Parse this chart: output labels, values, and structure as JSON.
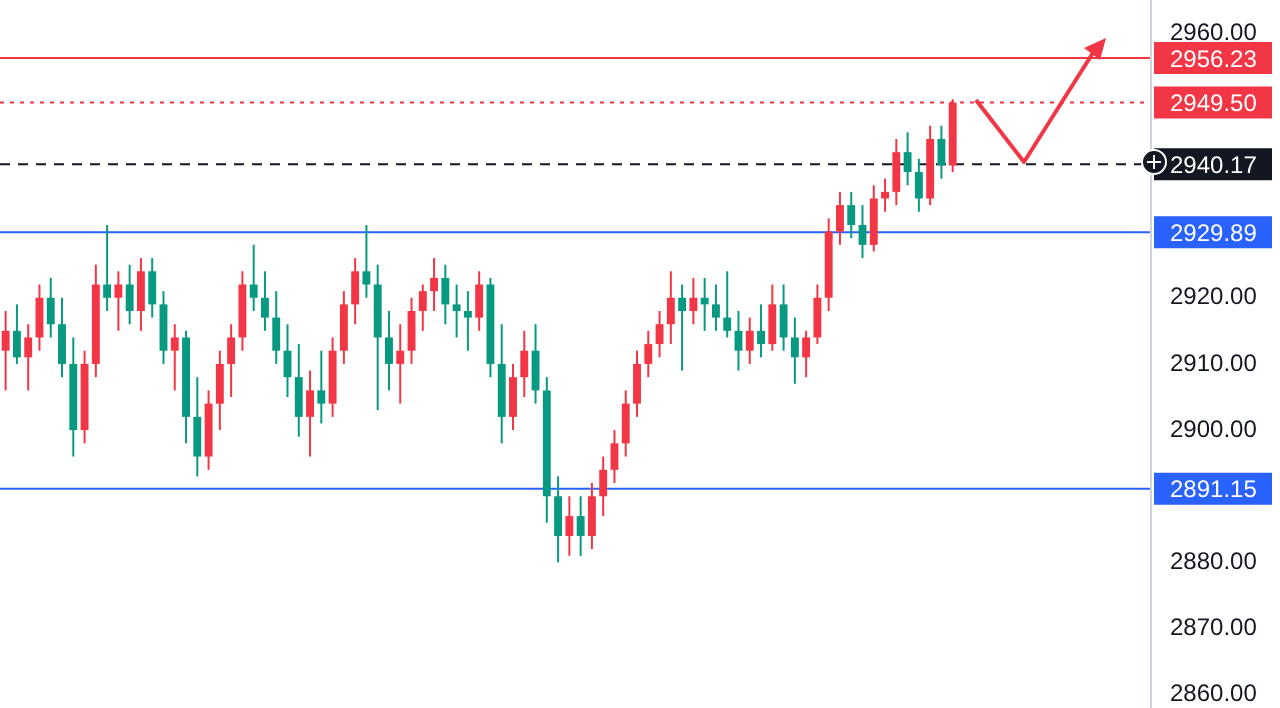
{
  "chart_data": {
    "type": "candlestick",
    "categories": [
      null,
      null,
      null,
      null,
      null,
      null,
      null,
      null,
      null,
      null,
      null,
      null,
      null,
      null,
      null,
      null,
      null,
      null,
      null,
      null,
      null,
      null,
      null,
      null,
      null,
      null,
      null,
      null,
      null,
      null,
      null,
      null,
      null,
      null,
      null,
      null,
      null,
      null,
      null,
      null,
      null,
      null,
      null,
      null,
      null,
      null,
      null,
      null,
      null,
      null,
      null,
      null,
      null,
      null,
      null,
      null,
      null,
      null,
      null,
      null,
      null,
      null,
      null,
      null,
      null,
      null,
      null,
      null,
      null,
      null,
      null,
      null,
      null,
      null,
      null,
      null,
      null,
      null,
      null,
      null,
      null,
      null,
      null,
      null,
      null,
      null,
      null,
      null,
      null,
      null,
      null,
      null,
      null,
      null,
      null,
      null,
      null,
      null,
      null,
      null,
      null,
      null
    ],
    "ohlc": [
      [
        2912,
        2918,
        2906,
        2915
      ],
      [
        2915,
        2919,
        2910,
        2911
      ],
      [
        2911,
        2916,
        2906,
        2914
      ],
      [
        2914,
        2922,
        2912,
        2920
      ],
      [
        2920,
        2923,
        2914,
        2916
      ],
      [
        2916,
        2920,
        2908,
        2910
      ],
      [
        2910,
        2914,
        2896,
        2900
      ],
      [
        2900,
        2912,
        2898,
        2910
      ],
      [
        2910,
        2925,
        2908,
        2922
      ],
      [
        2922,
        2931,
        2918,
        2920
      ],
      [
        2920,
        2924,
        2915,
        2922
      ],
      [
        2922,
        2925,
        2916,
        2918
      ],
      [
        2918,
        2926,
        2915,
        2924
      ],
      [
        2924,
        2926,
        2917,
        2919
      ],
      [
        2919,
        2921,
        2910,
        2912
      ],
      [
        2912,
        2916,
        2906,
        2914
      ],
      [
        2914,
        2915,
        2898,
        2902
      ],
      [
        2902,
        2908,
        2893,
        2896
      ],
      [
        2896,
        2906,
        2894,
        2904
      ],
      [
        2904,
        2912,
        2900,
        2910
      ],
      [
        2910,
        2916,
        2905,
        2914
      ],
      [
        2914,
        2924,
        2912,
        2922
      ],
      [
        2922,
        2928,
        2918,
        2920
      ],
      [
        2920,
        2924,
        2915,
        2917
      ],
      [
        2917,
        2921,
        2910,
        2912
      ],
      [
        2912,
        2916,
        2905,
        2908
      ],
      [
        2908,
        2913,
        2899,
        2902
      ],
      [
        2902,
        2909,
        2896,
        2906
      ],
      [
        2906,
        2912,
        2901,
        2904
      ],
      [
        2904,
        2914,
        2902,
        2912
      ],
      [
        2912,
        2921,
        2910,
        2919
      ],
      [
        2919,
        2926,
        2916,
        2924
      ],
      [
        2924,
        2931,
        2920,
        2922
      ],
      [
        2922,
        2925,
        2903,
        2914
      ],
      [
        2914,
        2918,
        2906,
        2910
      ],
      [
        2910,
        2916,
        2904,
        2912
      ],
      [
        2912,
        2920,
        2910,
        2918
      ],
      [
        2918,
        2922,
        2915,
        2921
      ],
      [
        2921,
        2926,
        2918,
        2923
      ],
      [
        2923,
        2925,
        2916,
        2919
      ],
      [
        2919,
        2922,
        2914,
        2918
      ],
      [
        2918,
        2921,
        2912,
        2917
      ],
      [
        2917,
        2924,
        2915,
        2922
      ],
      [
        2922,
        2923,
        2908,
        2910
      ],
      [
        2910,
        2916,
        2898,
        2902
      ],
      [
        2902,
        2910,
        2900,
        2908
      ],
      [
        2908,
        2915,
        2905,
        2912
      ],
      [
        2912,
        2916,
        2904,
        2906
      ],
      [
        2906,
        2908,
        2886,
        2890
      ],
      [
        2890,
        2893,
        2880,
        2884
      ],
      [
        2884,
        2890,
        2881,
        2887
      ],
      [
        2887,
        2890,
        2881,
        2884
      ],
      [
        2884,
        2892,
        2882,
        2890
      ],
      [
        2890,
        2896,
        2887,
        2894
      ],
      [
        2894,
        2900,
        2892,
        2898
      ],
      [
        2898,
        2906,
        2896,
        2904
      ],
      [
        2904,
        2912,
        2902,
        2910
      ],
      [
        2910,
        2915,
        2908,
        2913
      ],
      [
        2913,
        2918,
        2911,
        2916
      ],
      [
        2916,
        2924,
        2913,
        2920
      ],
      [
        2920,
        2922,
        2909,
        2918
      ],
      [
        2918,
        2923,
        2916,
        2920
      ],
      [
        2920,
        2923,
        2915,
        2919
      ],
      [
        2919,
        2922,
        2915,
        2917
      ],
      [
        2917,
        2924,
        2914,
        2915
      ],
      [
        2915,
        2918,
        2909,
        2912
      ],
      [
        2912,
        2917,
        2910,
        2915
      ],
      [
        2915,
        2919,
        2911,
        2913
      ],
      [
        2913,
        2922,
        2912,
        2919
      ],
      [
        2919,
        2922,
        2912,
        2914
      ],
      [
        2914,
        2917,
        2907,
        2911
      ],
      [
        2911,
        2915,
        2908,
        2914
      ],
      [
        2914,
        2922,
        2913,
        2920
      ],
      [
        2920,
        2932,
        2918,
        2930
      ],
      [
        2930,
        2936,
        2928,
        2934
      ],
      [
        2934,
        2936,
        2929,
        2931
      ],
      [
        2931,
        2934,
        2926,
        2928
      ],
      [
        2928,
        2937,
        2927,
        2935
      ],
      [
        2935,
        2938,
        2933,
        2936
      ],
      [
        2936,
        2944,
        2934,
        2942
      ],
      [
        2942,
        2945,
        2937,
        2939
      ],
      [
        2939,
        2941,
        2933,
        2935
      ],
      [
        2935,
        2946,
        2934,
        2944
      ],
      [
        2944,
        2946,
        2938,
        2940
      ],
      [
        2940,
        2950,
        2939,
        2949.5
      ],
      null,
      null,
      null,
      null,
      null,
      null,
      null,
      null,
      null,
      null,
      null,
      null,
      null,
      null,
      null,
      null,
      null
    ],
    "colors": [
      "#f23645",
      "#089981",
      "#f23645",
      "#f23645",
      "#089981",
      "#089981",
      "#089981",
      "#f23645",
      "#f23645",
      "#089981",
      "#f23645",
      "#089981",
      "#f23645",
      "#089981",
      "#089981",
      "#f23645",
      "#089981",
      "#089981",
      "#f23645",
      "#f23645",
      "#f23645",
      "#f23645",
      "#089981",
      "#089981",
      "#089981",
      "#089981",
      "#089981",
      "#f23645",
      "#089981",
      "#f23645",
      "#f23645",
      "#f23645",
      "#089981",
      "#089981",
      "#089981",
      "#f23645",
      "#f23645",
      "#f23645",
      "#f23645",
      "#089981",
      "#089981",
      "#089981",
      "#f23645",
      "#089981",
      "#089981",
      "#f23645",
      "#f23645",
      "#089981",
      "#089981",
      "#089981",
      "#f23645",
      "#089981",
      "#f23645",
      "#f23645",
      "#f23645",
      "#f23645",
      "#f23645",
      "#f23645",
      "#f23645",
      "#f23645",
      "#089981",
      "#f23645",
      "#089981",
      "#089981",
      "#089981",
      "#089981",
      "#f23645",
      "#089981",
      "#f23645",
      "#089981",
      "#089981",
      "#f23645",
      "#f23645",
      "#f23645",
      "#f23645",
      "#089981",
      "#089981",
      "#f23645",
      "#f23645",
      "#f23645",
      "#089981",
      "#089981",
      "#f23645",
      "#089981",
      "#f23645",
      null,
      null,
      null,
      null,
      null,
      null,
      null,
      null,
      null,
      null,
      null,
      null,
      null,
      null,
      null,
      null,
      null
    ],
    "ylim": [
      2858,
      2965
    ],
    "yticks": [
      {
        "value": 2860,
        "label": "2860.00"
      },
      {
        "value": 2870,
        "label": "2870.00"
      },
      {
        "value": 2880,
        "label": "2880.00"
      },
      {
        "value": 2900,
        "label": "2900.00"
      },
      {
        "value": 2910,
        "label": "2910.00"
      },
      {
        "value": 2920,
        "label": "2920.00"
      },
      {
        "value": 2960,
        "label": "2960.00"
      }
    ],
    "grid": false,
    "legend": false,
    "tick_labels": "y",
    "ref_lines": [
      {
        "axis": "y",
        "value": 2956.23,
        "label": "2956.23",
        "color": "#f23645",
        "line_style": "solid"
      },
      {
        "axis": "y",
        "value": 2949.5,
        "label": "2949.50",
        "color": "#f23645",
        "line_style": "dotted"
      },
      {
        "axis": "y",
        "value": 2940.17,
        "label": "2940.17",
        "color": "#131722",
        "line_style": "dashed"
      },
      {
        "axis": "y",
        "value": 2929.89,
        "label": "2929.89",
        "color": "#2962ff",
        "line_style": "solid"
      },
      {
        "axis": "y",
        "value": 2891.15,
        "label": "2891.15",
        "color": "#2962ff",
        "line_style": "solid"
      }
    ]
  }
}
